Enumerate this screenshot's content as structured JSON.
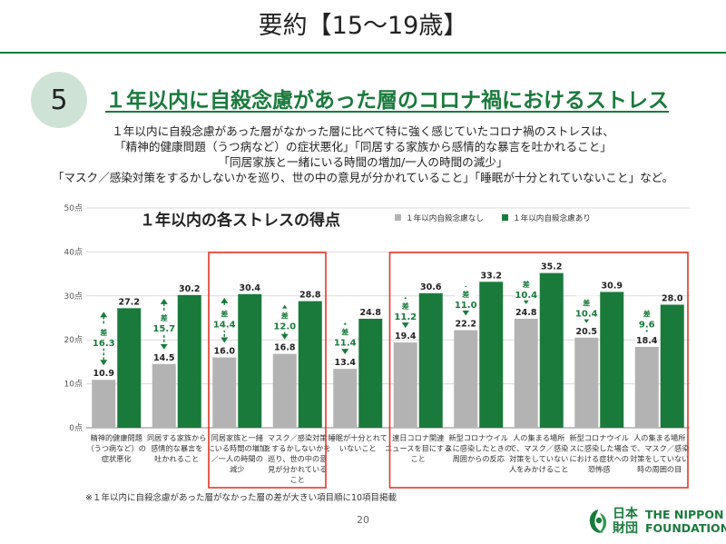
{
  "header": {
    "title": "要約【15～19歳】",
    "section_number": "5",
    "section_heading": "１年以内に自殺念慮があった層のコロナ禍におけるストレス"
  },
  "summary_lines": [
    "１年以内に自殺念慮があった層がなかった層に比べて特に強く感じていたコロナ禍のストレスは、",
    "「精神的健康問題（うつ病など）の症状悪化」「同居する家族から感情的な暴言を吐かれること」",
    "「同居家族と一緒にいる時間の増加/一人の時間の減少」",
    "「マスク／感染対策をするかしないかを巡り、世の中の意見が分かれていること」「睡眠が十分とれていないこと」など。"
  ],
  "footnote": "※１年以内に自殺念慮があった層がなかった層の差が大きい項目順に10項目掲載",
  "page_number": "20",
  "logo": {
    "jp_line1": "日本",
    "jp_line2": "財団",
    "en_line1": "THE NIPPON",
    "en_line2": "FOUNDATION"
  },
  "colors": {
    "accent_green": "#1a7a3c",
    "bar_gray": "#b3b3b3",
    "bar_green": "#1a7a3c",
    "highlight_box": "#e8362a",
    "badge_bg": "#cfe2d6"
  },
  "chart_data": {
    "type": "bar",
    "title": "１年以内の各ストレスの得点",
    "ylim": [
      0,
      50
    ],
    "yticks": [
      "0点",
      "10点",
      "20点",
      "30点",
      "40点",
      "50点"
    ],
    "grid": true,
    "legend_position": "top-right",
    "diff_prefix": "差",
    "categories": [
      "精神的健康問題（うつ病など）の症状悪化",
      "同居する家族から感情的な暴言を吐かれること",
      "同居家族と一緒にいる時間の増加／一人の時間の減少",
      "マスク／感染対策をするかしないかを巡り、世の中の意見が分かれていること",
      "睡眠が十分とれていないこと",
      "連日コロナ関連ニュースを目にすること",
      "新型コロナウイルスに感染したときの周囲からの反応",
      "人の集まる場所で、マスク／感染対策をしていない人をみかけること",
      "新型コロナウイルスに感染した場合における症状への恐怖感",
      "人の集まる場所で、マスク／感染対策をしていない時の周囲の目"
    ],
    "category_lines": [
      [
        "精神的健康問題",
        "（うつ病など）の",
        "症状悪化"
      ],
      [
        "同居する家族から",
        "感情的な暴言を",
        "吐かれること"
      ],
      [
        "同居家族と一緒",
        "にいる時間の増加",
        "／一人の時間の",
        "減少"
      ],
      [
        "マスク／感染対策",
        "をするかしないかを",
        "巡り、世の中の意",
        "見が分かれている",
        "こと"
      ],
      [
        "睡眠が十分とれて",
        "いないこと"
      ],
      [
        "連日コロナ関連",
        "ニュースを目にする",
        "こと"
      ],
      [
        "新型コロナウイル",
        "スに感染したときの",
        "周囲からの反応"
      ],
      [
        "人の集まる場所",
        "で、マスク／感染",
        "対策をしていない",
        "人をみかけること"
      ],
      [
        "新型コロナウイル",
        "スに感染した場合",
        "における症状への",
        "恐怖感"
      ],
      [
        "人の集まる場所",
        "で、マスク／感染",
        "対策をしていない",
        "時の周囲の目"
      ]
    ],
    "series": [
      {
        "name": "１年以内自殺念慮なし",
        "values": [
          10.9,
          14.5,
          16.0,
          16.8,
          13.4,
          19.4,
          22.2,
          24.8,
          20.5,
          18.4
        ]
      },
      {
        "name": "１年以内自殺念慮あり",
        "values": [
          27.2,
          30.2,
          30.4,
          28.8,
          24.8,
          30.6,
          33.2,
          35.2,
          30.9,
          28.0
        ]
      }
    ],
    "differences": [
      16.3,
      15.7,
      14.4,
      12.0,
      11.4,
      11.2,
      11.0,
      10.4,
      10.4,
      9.6
    ],
    "highlight_groups": [
      [
        2,
        3
      ],
      [
        5,
        6,
        7,
        8,
        9
      ]
    ]
  }
}
